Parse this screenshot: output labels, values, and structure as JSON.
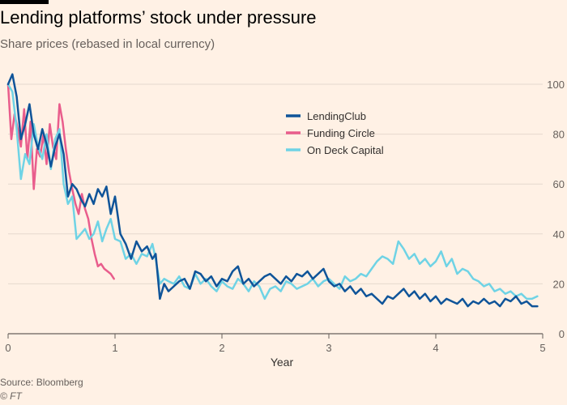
{
  "header": {
    "title": "Lending platforms’ stock under pressure",
    "subtitle": "Share prices (rebased in local currency)"
  },
  "footer": {
    "source": "Source: Bloomberg",
    "credit": "© FT"
  },
  "chart_data": {
    "type": "line",
    "title": "Lending platforms’ stock under pressure",
    "subtitle": "Share prices (rebased in local currency)",
    "xlabel": "Year",
    "ylabel": "",
    "xlim": [
      0,
      5
    ],
    "ylim": [
      0,
      100
    ],
    "x_ticks": [
      0,
      1,
      2,
      3,
      4,
      5
    ],
    "y_ticks": [
      0,
      20,
      40,
      60,
      80,
      100
    ],
    "y_axis_side": "right",
    "grid": "horizontal",
    "legend_position": "top-right",
    "series": [
      {
        "name": "LendingClub",
        "color": "#0f5499",
        "x": [
          0,
          0.04,
          0.08,
          0.12,
          0.16,
          0.2,
          0.24,
          0.28,
          0.32,
          0.36,
          0.4,
          0.44,
          0.48,
          0.52,
          0.56,
          0.6,
          0.64,
          0.68,
          0.72,
          0.76,
          0.8,
          0.84,
          0.88,
          0.92,
          0.96,
          1.0,
          1.05,
          1.1,
          1.15,
          1.2,
          1.25,
          1.3,
          1.35,
          1.38,
          1.42,
          1.46,
          1.5,
          1.55,
          1.6,
          1.65,
          1.7,
          1.75,
          1.8,
          1.85,
          1.9,
          1.95,
          2.0,
          2.05,
          2.1,
          2.15,
          2.2,
          2.25,
          2.3,
          2.35,
          2.4,
          2.45,
          2.5,
          2.55,
          2.6,
          2.65,
          2.7,
          2.75,
          2.8,
          2.85,
          2.9,
          2.95,
          3.0,
          3.05,
          3.1,
          3.15,
          3.2,
          3.25,
          3.3,
          3.35,
          3.4,
          3.45,
          3.5,
          3.55,
          3.6,
          3.65,
          3.7,
          3.75,
          3.8,
          3.85,
          3.9,
          3.95,
          4.0,
          4.05,
          4.1,
          4.15,
          4.2,
          4.25,
          4.3,
          4.35,
          4.4,
          4.45,
          4.5,
          4.55,
          4.6,
          4.65,
          4.7,
          4.75,
          4.8,
          4.85,
          4.9,
          4.95
        ],
        "values": [
          100,
          104,
          95,
          78,
          84,
          92,
          80,
          74,
          82,
          76,
          67,
          75,
          80,
          72,
          55,
          60,
          58,
          54,
          51,
          56,
          52,
          58,
          55,
          59,
          48,
          55,
          40,
          36,
          30,
          37,
          33,
          35,
          30,
          32,
          14,
          20,
          17,
          19,
          21,
          22,
          18,
          25,
          24,
          21,
          23,
          19,
          22,
          21,
          25,
          27,
          20,
          22,
          19,
          21,
          23,
          24,
          22,
          20,
          23,
          21,
          24,
          23,
          25,
          22,
          24,
          26,
          21,
          19,
          20,
          17,
          19,
          16,
          18,
          15,
          16,
          14,
          12,
          15,
          14,
          16,
          18,
          15,
          17,
          14,
          16,
          13,
          15,
          12,
          14,
          13,
          12,
          14,
          11,
          13,
          12,
          14,
          12,
          13,
          11,
          14,
          13,
          15,
          12,
          13,
          11,
          11
        ]
      },
      {
        "name": "Funding Circle",
        "color": "#e95d8c",
        "x": [
          0,
          0.03,
          0.06,
          0.09,
          0.12,
          0.15,
          0.18,
          0.21,
          0.24,
          0.27,
          0.3,
          0.33,
          0.36,
          0.39,
          0.42,
          0.45,
          0.48,
          0.51,
          0.54,
          0.57,
          0.6,
          0.63,
          0.66,
          0.69,
          0.72,
          0.75,
          0.78,
          0.81,
          0.84,
          0.87,
          0.9,
          0.93,
          0.96,
          0.99
        ],
        "values": [
          100,
          78,
          88,
          82,
          75,
          90,
          70,
          85,
          58,
          74,
          71,
          80,
          68,
          84,
          75,
          70,
          92,
          85,
          74,
          65,
          58,
          52,
          48,
          56,
          50,
          46,
          38,
          32,
          27,
          28,
          26,
          25,
          24,
          22
        ]
      },
      {
        "name": "On Deck Capital",
        "color": "#6fd3e5",
        "x": [
          0,
          0.04,
          0.08,
          0.12,
          0.16,
          0.2,
          0.24,
          0.28,
          0.32,
          0.36,
          0.4,
          0.44,
          0.48,
          0.52,
          0.56,
          0.6,
          0.64,
          0.68,
          0.72,
          0.76,
          0.8,
          0.84,
          0.88,
          0.92,
          0.96,
          1.0,
          1.05,
          1.1,
          1.15,
          1.2,
          1.25,
          1.3,
          1.35,
          1.38,
          1.42,
          1.46,
          1.5,
          1.55,
          1.6,
          1.65,
          1.7,
          1.75,
          1.8,
          1.85,
          1.9,
          1.95,
          2.0,
          2.05,
          2.1,
          2.15,
          2.2,
          2.25,
          2.3,
          2.35,
          2.4,
          2.45,
          2.5,
          2.55,
          2.6,
          2.65,
          2.7,
          2.75,
          2.8,
          2.85,
          2.9,
          2.95,
          3.0,
          3.05,
          3.1,
          3.15,
          3.2,
          3.25,
          3.3,
          3.35,
          3.4,
          3.45,
          3.5,
          3.55,
          3.6,
          3.65,
          3.7,
          3.75,
          3.8,
          3.85,
          3.9,
          3.95,
          4.0,
          4.05,
          4.1,
          4.15,
          4.2,
          4.25,
          4.3,
          4.35,
          4.4,
          4.45,
          4.5,
          4.55,
          4.6,
          4.65,
          4.7,
          4.75,
          4.8,
          4.85,
          4.9,
          4.95
        ],
        "values": [
          100,
          97,
          82,
          62,
          72,
          68,
          84,
          75,
          70,
          80,
          66,
          78,
          82,
          60,
          52,
          55,
          38,
          40,
          42,
          38,
          40,
          45,
          37,
          42,
          46,
          38,
          37,
          30,
          32,
          28,
          32,
          31,
          36,
          30,
          20,
          22,
          21,
          20,
          23,
          19,
          18,
          24,
          20,
          22,
          19,
          17,
          21,
          19,
          18,
          22,
          20,
          17,
          21,
          19,
          14,
          18,
          19,
          17,
          21,
          20,
          18,
          19,
          20,
          22,
          19,
          21,
          22,
          20,
          18,
          23,
          21,
          22,
          24,
          23,
          26,
          29,
          31,
          30,
          28,
          37,
          34,
          30,
          32,
          28,
          30,
          27,
          29,
          33,
          27,
          30,
          24,
          26,
          25,
          22,
          21,
          19,
          20,
          17,
          18,
          16,
          17,
          15,
          16,
          14,
          14,
          15
        ]
      }
    ]
  }
}
